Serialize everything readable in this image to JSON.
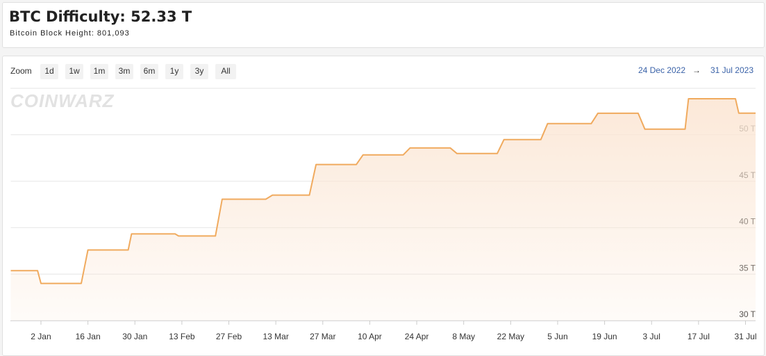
{
  "header": {
    "title": "BTC Difficulty: 52.33 T",
    "subtitle": "Bitcoin Block Height: 801,093"
  },
  "toolbar": {
    "zoom_label": "Zoom",
    "zoom_buttons": [
      "1d",
      "1w",
      "1m",
      "3m",
      "6m",
      "1y",
      "3y",
      "All"
    ],
    "range_from": "24 Dec 2022",
    "range_arrow": "→",
    "range_to": "31 Jul 2023"
  },
  "watermark": "COINWARZ",
  "chart_data": {
    "type": "area",
    "x": [
      "2022-12-24",
      "2023-01-01",
      "2023-01-02",
      "2023-01-14",
      "2023-01-16",
      "2023-01-28",
      "2023-01-29",
      "2023-02-11",
      "2023-02-12",
      "2023-02-23",
      "2023-02-25",
      "2023-03-10",
      "2023-03-12",
      "2023-03-23",
      "2023-03-25",
      "2023-04-06",
      "2023-04-08",
      "2023-04-20",
      "2023-04-22",
      "2023-05-04",
      "2023-05-06",
      "2023-05-18",
      "2023-05-20",
      "2023-05-31",
      "2023-06-02",
      "2023-06-15",
      "2023-06-17",
      "2023-06-29",
      "2023-07-01",
      "2023-07-13",
      "2023-07-14",
      "2023-07-28",
      "2023-07-29",
      "2023-08-03"
    ],
    "series": [
      {
        "color": "#f0aa5e",
        "values": [
          35.37,
          35.37,
          34.0,
          34.0,
          37.6,
          37.6,
          39.33,
          39.33,
          39.1,
          39.1,
          43.06,
          43.06,
          43.5,
          43.5,
          46.8,
          46.8,
          47.84,
          47.84,
          48.58,
          48.58,
          47.98,
          47.98,
          49.48,
          49.48,
          51.2,
          51.2,
          52.31,
          52.31,
          50.6,
          50.6,
          53.88,
          53.88,
          52.33,
          52.33
        ]
      }
    ],
    "xlim": [
      "2022-12-24",
      "2023-08-03"
    ],
    "xticks": [
      {
        "value": "2023-01-02",
        "label": "2 Jan"
      },
      {
        "value": "2023-01-16",
        "label": "16 Jan"
      },
      {
        "value": "2023-01-30",
        "label": "30 Jan"
      },
      {
        "value": "2023-02-13",
        "label": "13 Feb"
      },
      {
        "value": "2023-02-27",
        "label": "27 Feb"
      },
      {
        "value": "2023-03-13",
        "label": "13 Mar"
      },
      {
        "value": "2023-03-27",
        "label": "27 Mar"
      },
      {
        "value": "2023-04-10",
        "label": "10 Apr"
      },
      {
        "value": "2023-04-24",
        "label": "24 Apr"
      },
      {
        "value": "2023-05-08",
        "label": "8 May"
      },
      {
        "value": "2023-05-22",
        "label": "22 May"
      },
      {
        "value": "2023-06-05",
        "label": "5 Jun"
      },
      {
        "value": "2023-06-19",
        "label": "19 Jun"
      },
      {
        "value": "2023-07-03",
        "label": "3 Jul"
      },
      {
        "value": "2023-07-17",
        "label": "17 Jul"
      },
      {
        "value": "2023-07-31",
        "label": "31 Jul"
      }
    ],
    "ylim": [
      30,
      55
    ],
    "yticks": [
      {
        "value": 30,
        "label": "30 T"
      },
      {
        "value": 35,
        "label": "35 T"
      },
      {
        "value": 40,
        "label": "40 T"
      },
      {
        "value": 45,
        "label": "45 T"
      },
      {
        "value": 50,
        "label": "50 T"
      }
    ],
    "grid": true
  }
}
